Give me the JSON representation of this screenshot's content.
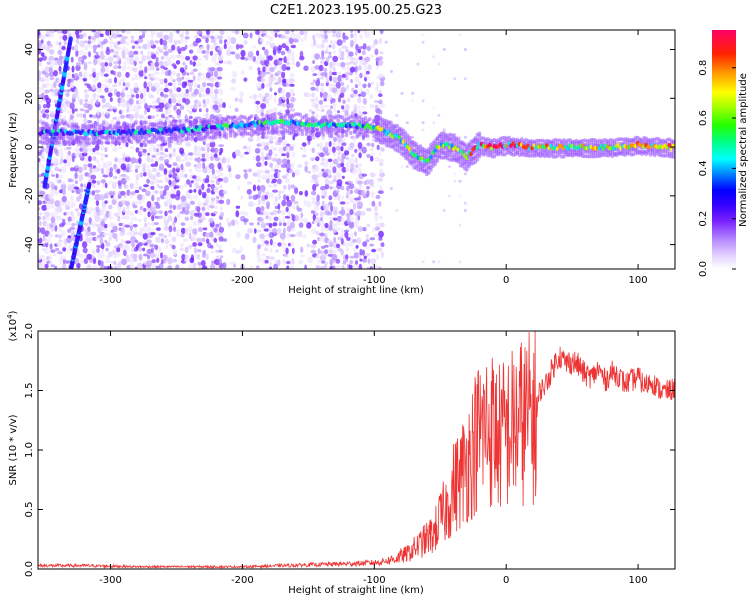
{
  "figure": {
    "title": "C2E1.2023.195.00.25.G23"
  },
  "colors": {
    "snr_line": "#ee3333",
    "axis": "#000000",
    "background": "#ffffff",
    "colormap": [
      "#ffffff",
      "#e8d8ff",
      "#b98cff",
      "#8a3cff",
      "#5a00ff",
      "#0000ff",
      "#0099ff",
      "#00ffff",
      "#00ff66",
      "#33ff00",
      "#aaff00",
      "#ffff00",
      "#ff9900",
      "#ff3300",
      "#ff0055"
    ]
  },
  "chart_data": [
    {
      "type": "heatmap",
      "title": "",
      "xlabel": "Height of straight line (km)",
      "ylabel": "Frequency (Hz)",
      "xlim": [
        -355,
        128
      ],
      "ylim": [
        -50,
        48
      ],
      "xticks": [
        -300,
        -200,
        -100,
        0,
        100
      ],
      "yticks": [
        -40,
        -20,
        0,
        20,
        40
      ],
      "grid": false,
      "colorbar": {
        "label": "Normalized spectral amplitude",
        "range": [
          0.0,
          0.95
        ],
        "ticks": [
          0.0,
          0.2,
          0.4,
          0.6,
          0.8
        ],
        "tick_labels": [
          "0.0",
          "0.2",
          "0.4",
          "0.6",
          "0.8"
        ]
      },
      "features": {
        "main_ridge": [
          [
            -320,
            6
          ],
          [
            -290,
            6
          ],
          [
            -250,
            7
          ],
          [
            -220,
            8
          ],
          [
            -200,
            9
          ],
          [
            -180,
            10
          ],
          [
            -160,
            10
          ],
          [
            -140,
            9
          ],
          [
            -120,
            9
          ],
          [
            -100,
            8
          ],
          [
            -90,
            6
          ],
          [
            -80,
            3
          ],
          [
            -70,
            -3
          ],
          [
            -60,
            -6
          ],
          [
            -50,
            1
          ],
          [
            -40,
            0
          ],
          [
            -30,
            -4
          ],
          [
            -20,
            1
          ],
          [
            -10,
            0
          ],
          [
            0,
            1
          ],
          [
            20,
            0
          ],
          [
            40,
            0
          ],
          [
            60,
            0
          ],
          [
            80,
            0
          ],
          [
            100,
            1
          ],
          [
            128,
            0
          ]
        ],
        "diagonal_streaks": [
          [
            [
              -350,
              -16
            ],
            [
              -330,
              45
            ]
          ],
          [
            [
              -330,
              -50
            ],
            [
              -316,
              -15
            ]
          ]
        ],
        "noise_extent": [
          -355,
          -95
        ]
      }
    },
    {
      "type": "line",
      "title": "",
      "xlabel": "Height of straight line (km)",
      "ylabel": "SNR (10 * v/v)",
      "y_multiplier": "(x10⁴)",
      "xlim": [
        -355,
        128
      ],
      "ylim": [
        0,
        2.0
      ],
      "xticks": [
        -300,
        -200,
        -100,
        0,
        100
      ],
      "yticks": [
        0.0,
        0.5,
        1.0,
        1.5,
        2.0
      ],
      "ytick_labels": [
        "0.0",
        "0.5",
        "1.0",
        "1.5",
        "2.0"
      ],
      "grid": false,
      "series": [
        {
          "envelope": [
            [
              -355,
              0.03
            ],
            [
              -320,
              0.03
            ],
            [
              -280,
              0.02
            ],
            [
              -240,
              0.02
            ],
            [
              -200,
              0.02
            ],
            [
              -170,
              0.03
            ],
            [
              -140,
              0.04
            ],
            [
              -110,
              0.05
            ],
            [
              -95,
              0.06
            ],
            [
              -85,
              0.1
            ],
            [
              -75,
              0.15
            ],
            [
              -65,
              0.25
            ],
            [
              -55,
              0.35
            ],
            [
              -50,
              0.5
            ],
            [
              -45,
              0.6
            ],
            [
              -40,
              0.8
            ],
            [
              -35,
              0.9
            ],
            [
              -30,
              1.05
            ],
            [
              -25,
              1.2
            ],
            [
              -20,
              1.35
            ],
            [
              -15,
              1.4
            ],
            [
              -10,
              1.38
            ],
            [
              -5,
              1.3
            ],
            [
              0,
              1.35
            ],
            [
              5,
              1.4
            ],
            [
              10,
              1.45
            ],
            [
              15,
              1.48
            ],
            [
              20,
              1.5
            ],
            [
              25,
              1.55
            ],
            [
              30,
              1.62
            ],
            [
              35,
              1.75
            ],
            [
              40,
              1.88
            ],
            [
              45,
              1.8
            ],
            [
              50,
              1.82
            ],
            [
              55,
              1.78
            ],
            [
              60,
              1.7
            ],
            [
              65,
              1.68
            ],
            [
              70,
              1.75
            ],
            [
              75,
              1.65
            ],
            [
              80,
              1.72
            ],
            [
              85,
              1.7
            ],
            [
              90,
              1.62
            ],
            [
              95,
              1.65
            ],
            [
              100,
              1.68
            ],
            [
              105,
              1.6
            ],
            [
              110,
              1.65
            ],
            [
              115,
              1.58
            ],
            [
              120,
              1.55
            ],
            [
              128,
              1.58
            ]
          ]
        }
      ]
    }
  ]
}
